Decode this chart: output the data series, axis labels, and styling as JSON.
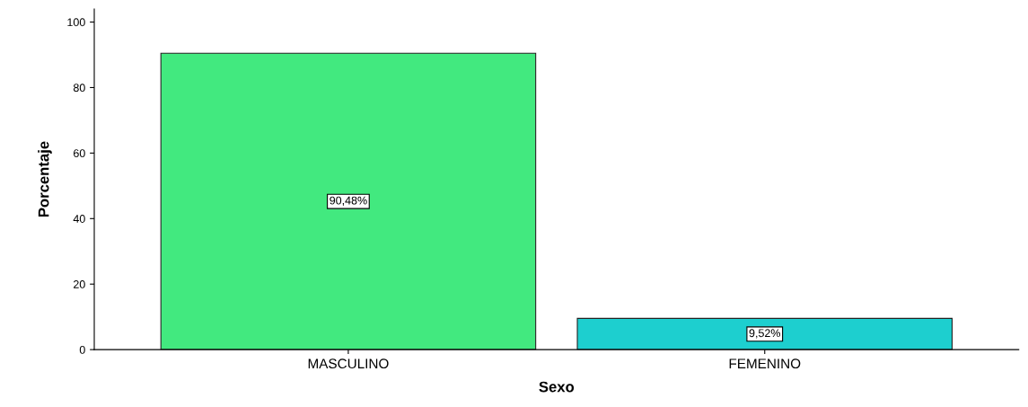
{
  "chart_data": {
    "type": "bar",
    "xlabel": "Sexo",
    "ylabel": "Porcentaje",
    "categories": [
      "MASCULINO",
      "FEMENINO"
    ],
    "values": [
      90.48,
      9.52
    ],
    "colors": [
      "#42e97f",
      "#1dcfcf"
    ],
    "value_labels": [
      "90,48%",
      "9,52%"
    ],
    "ylim": [
      0,
      104
    ],
    "yticks": [
      0,
      20,
      40,
      60,
      80,
      100
    ],
    "grid": false
  }
}
